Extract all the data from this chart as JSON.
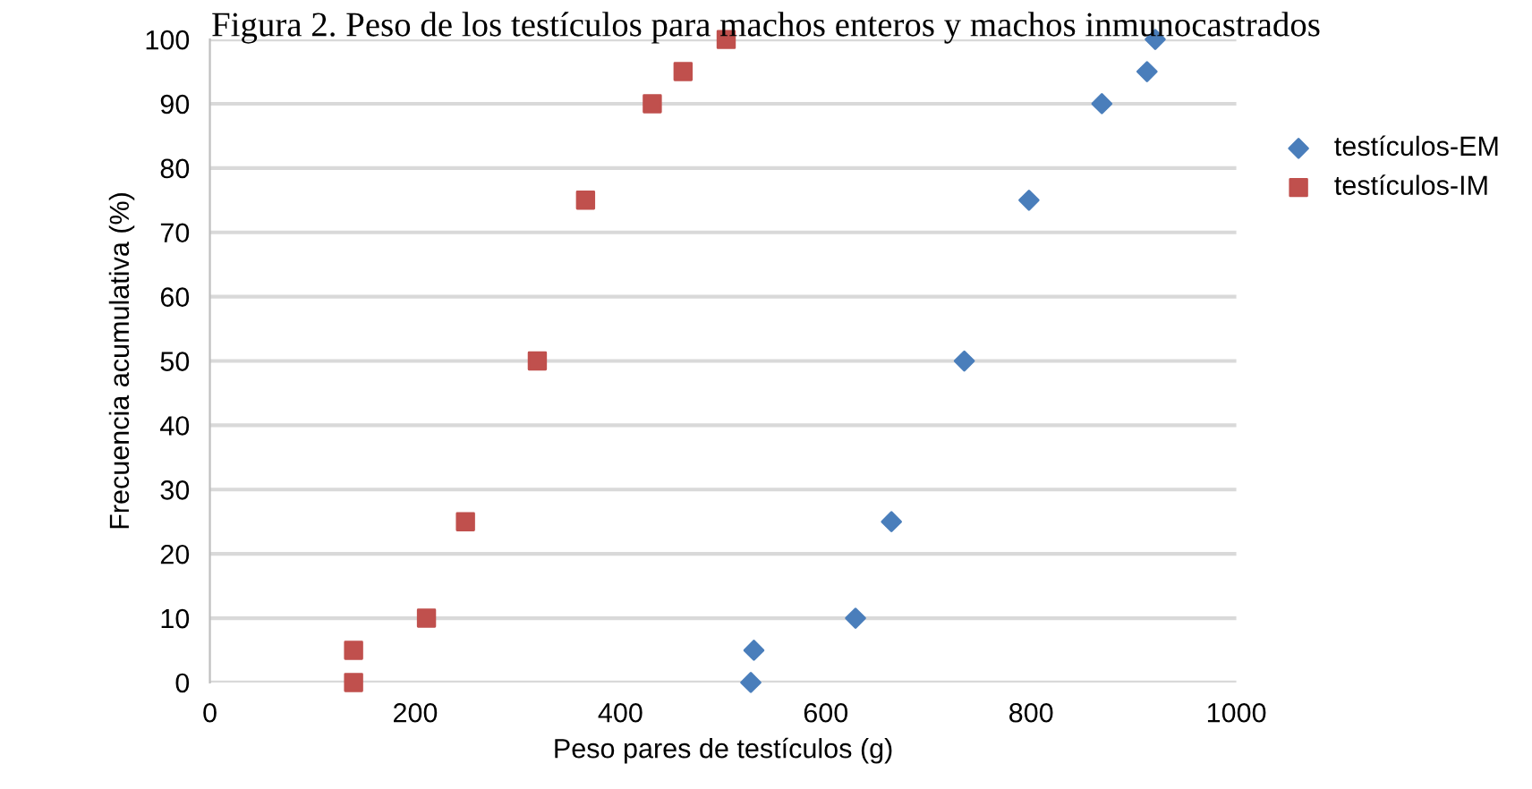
{
  "chart_data": {
    "type": "scatter",
    "title": "Figura 2. Peso de los testículos para machos enteros y machos inmunocastrados",
    "xlabel": "Peso pares de testículos (g)",
    "ylabel": "Frecuencia acumulativa (%)",
    "series": [
      {
        "name": "testículos-EM",
        "color": "#4a7ebb",
        "marker": "diamond",
        "x": [
          527,
          530,
          629,
          664,
          735,
          798,
          869,
          913,
          921
        ],
        "values": [
          0,
          5,
          10,
          25,
          50,
          75,
          90,
          95,
          100
        ]
      },
      {
        "name": "testículos-IM",
        "color": "#c0504d",
        "marker": "square",
        "x": [
          140,
          140,
          211,
          249,
          319,
          366,
          431,
          461,
          503
        ],
        "values": [
          0,
          5,
          10,
          25,
          50,
          75,
          90,
          95,
          100
        ]
      }
    ],
    "xlim": [
      0,
      1000
    ],
    "xticks": [
      0,
      200,
      400,
      600,
      800,
      1000
    ],
    "ylim": [
      0,
      100
    ],
    "yticks": [
      0,
      10,
      20,
      30,
      40,
      50,
      60,
      70,
      80,
      90,
      100
    ],
    "grid": "y",
    "legend": "right"
  }
}
